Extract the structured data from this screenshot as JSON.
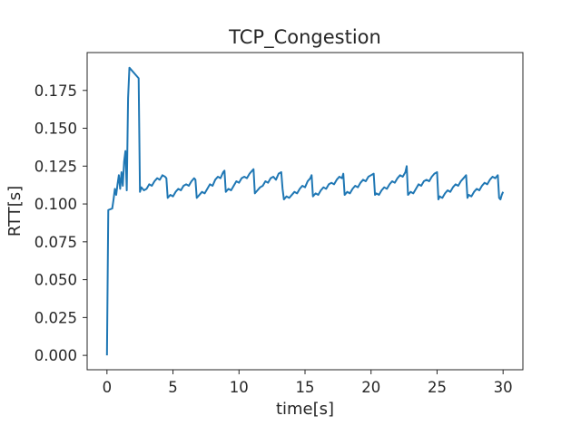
{
  "chart_data": {
    "type": "line",
    "title": "TCP_Congestion",
    "xlabel": "time[s]",
    "ylabel": "RTT[s]",
    "xlim": [
      -1.5,
      31.5
    ],
    "ylim": [
      -0.0095,
      0.2
    ],
    "xticks": [
      0,
      5,
      10,
      15,
      20,
      25,
      30
    ],
    "xtick_labels": [
      "0",
      "5",
      "10",
      "15",
      "20",
      "25",
      "30"
    ],
    "yticks": [
      0.0,
      0.025,
      0.05,
      0.075,
      0.1,
      0.125,
      0.15,
      0.175
    ],
    "ytick_labels": [
      "0.000",
      "0.025",
      "0.050",
      "0.075",
      "0.100",
      "0.125",
      "0.150",
      "0.175"
    ],
    "grid": false,
    "line_color": "#1f77b4",
    "x": [
      0.0,
      0.1,
      0.4,
      0.5,
      0.6,
      0.7,
      0.8,
      0.9,
      1.0,
      1.1,
      1.2,
      1.3,
      1.4,
      1.5,
      1.6,
      1.7,
      2.4,
      2.5,
      2.6,
      2.8,
      3.0,
      3.2,
      3.4,
      3.6,
      3.8,
      4.0,
      4.2,
      4.4,
      4.5,
      4.6,
      4.8,
      5.0,
      5.2,
      5.4,
      5.6,
      5.8,
      6.0,
      6.2,
      6.4,
      6.6,
      6.7,
      6.8,
      7.0,
      7.2,
      7.4,
      7.6,
      7.8,
      8.0,
      8.2,
      8.4,
      8.6,
      8.8,
      8.9,
      9.0,
      9.2,
      9.4,
      9.6,
      9.8,
      10.0,
      10.2,
      10.4,
      10.6,
      10.8,
      11.0,
      11.1,
      11.2,
      11.4,
      11.6,
      11.8,
      12.0,
      12.2,
      12.4,
      12.6,
      12.8,
      13.0,
      13.2,
      13.3,
      13.4,
      13.6,
      13.8,
      14.0,
      14.2,
      14.4,
      14.6,
      14.8,
      15.0,
      15.2,
      15.4,
      15.5,
      15.6,
      15.8,
      16.0,
      16.2,
      16.4,
      16.6,
      16.8,
      17.0,
      17.2,
      17.4,
      17.6,
      17.8,
      17.9,
      18.0,
      18.2,
      18.4,
      18.6,
      18.8,
      19.0,
      19.2,
      19.4,
      19.6,
      19.8,
      20.0,
      20.2,
      20.3,
      20.4,
      20.6,
      20.8,
      21.0,
      21.2,
      21.4,
      21.6,
      21.8,
      22.0,
      22.2,
      22.4,
      22.6,
      22.7,
      22.8,
      23.0,
      23.2,
      23.4,
      23.6,
      23.8,
      24.0,
      24.2,
      24.4,
      24.6,
      24.8,
      25.0,
      25.1,
      25.2,
      25.4,
      25.6,
      25.8,
      26.0,
      26.2,
      26.4,
      26.6,
      26.8,
      27.0,
      27.2,
      27.3,
      27.4,
      27.6,
      27.8,
      28.0,
      28.2,
      28.4,
      28.6,
      28.8,
      29.0,
      29.2,
      29.4,
      29.6,
      29.7,
      29.8,
      29.9,
      30.0
    ],
    "y": [
      0.0,
      0.096,
      0.097,
      0.103,
      0.11,
      0.106,
      0.113,
      0.119,
      0.11,
      0.121,
      0.112,
      0.128,
      0.135,
      0.109,
      0.17,
      0.19,
      0.183,
      0.108,
      0.111,
      0.109,
      0.11,
      0.113,
      0.112,
      0.115,
      0.117,
      0.116,
      0.119,
      0.118,
      0.117,
      0.104,
      0.106,
      0.105,
      0.108,
      0.11,
      0.109,
      0.112,
      0.113,
      0.112,
      0.115,
      0.117,
      0.116,
      0.104,
      0.106,
      0.108,
      0.107,
      0.11,
      0.113,
      0.112,
      0.116,
      0.118,
      0.117,
      0.121,
      0.122,
      0.108,
      0.11,
      0.109,
      0.112,
      0.115,
      0.114,
      0.117,
      0.118,
      0.117,
      0.12,
      0.122,
      0.123,
      0.107,
      0.109,
      0.111,
      0.112,
      0.115,
      0.114,
      0.117,
      0.118,
      0.116,
      0.12,
      0.121,
      0.11,
      0.103,
      0.105,
      0.104,
      0.106,
      0.108,
      0.107,
      0.11,
      0.112,
      0.111,
      0.115,
      0.117,
      0.119,
      0.105,
      0.107,
      0.106,
      0.109,
      0.111,
      0.11,
      0.113,
      0.114,
      0.113,
      0.116,
      0.118,
      0.117,
      0.12,
      0.106,
      0.108,
      0.107,
      0.11,
      0.112,
      0.111,
      0.114,
      0.116,
      0.115,
      0.118,
      0.119,
      0.12,
      0.106,
      0.107,
      0.106,
      0.109,
      0.111,
      0.11,
      0.113,
      0.115,
      0.114,
      0.117,
      0.119,
      0.118,
      0.121,
      0.125,
      0.106,
      0.108,
      0.107,
      0.11,
      0.113,
      0.112,
      0.115,
      0.116,
      0.115,
      0.118,
      0.12,
      0.121,
      0.103,
      0.105,
      0.104,
      0.107,
      0.109,
      0.108,
      0.111,
      0.113,
      0.112,
      0.115,
      0.117,
      0.119,
      0.104,
      0.106,
      0.105,
      0.108,
      0.11,
      0.109,
      0.112,
      0.114,
      0.113,
      0.116,
      0.118,
      0.117,
      0.119,
      0.104,
      0.103,
      0.106,
      0.108
    ]
  }
}
